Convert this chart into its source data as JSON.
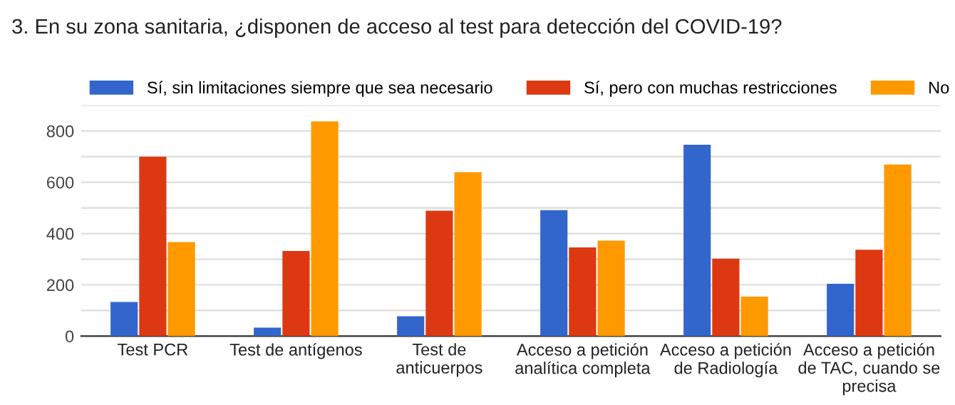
{
  "chart_data": {
    "type": "bar",
    "title": "3. En su zona sanitaria, ¿disponen de acceso al test para detección del COVID-19?",
    "categories": [
      "Test PCR",
      "Test de antígenos",
      "Test de\nanticuerpos",
      "Acceso a petición\nanalítica completa",
      "Acceso a petición\nde Radiología",
      "Acceso a petición\nde TAC, cuando se\nprecisa"
    ],
    "series": [
      {
        "name": "Sí, sin limitaciones siempre que sea necesario",
        "color": "#3366cc",
        "values": [
          133,
          33,
          78,
          491,
          746,
          204
        ]
      },
      {
        "name": "Sí, pero con muchas restricciones",
        "color": "#dc3912",
        "values": [
          700,
          332,
          489,
          346,
          302,
          337
        ]
      },
      {
        "name": "No",
        "color": "#ff9900",
        "values": [
          367,
          837,
          639,
          372,
          154,
          669
        ]
      }
    ],
    "ylim": [
      0,
      900
    ],
    "yticks": [
      0,
      {
        "value": 100,
        "label": null
      },
      200,
      {
        "value": 300,
        "label": null
      },
      400,
      {
        "value": 500,
        "label": null
      },
      600,
      {
        "value": 700,
        "label": null
      },
      800,
      {
        "value": 900,
        "label": null
      }
    ],
    "grid": "y",
    "legend": "top"
  }
}
